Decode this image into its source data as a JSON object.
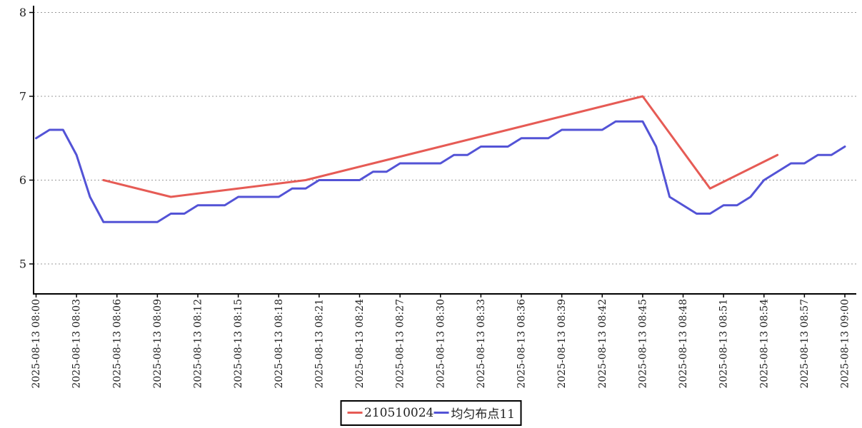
{
  "chart_data": {
    "type": "line",
    "title": "",
    "x_axis": {
      "tick_step_minutes": 3,
      "start_minute": 0,
      "end_minute": 60,
      "tick_labels": [
        "2025-08-13 08:00",
        "2025-08-13 08:03",
        "2025-08-13 08:06",
        "2025-08-13 08:09",
        "2025-08-13 08:12",
        "2025-08-13 08:15",
        "2025-08-13 08:18",
        "2025-08-13 08:21",
        "2025-08-13 08:24",
        "2025-08-13 08:27",
        "2025-08-13 08:30",
        "2025-08-13 08:33",
        "2025-08-13 08:36",
        "2025-08-13 08:39",
        "2025-08-13 08:42",
        "2025-08-13 08:45",
        "2025-08-13 08:48",
        "2025-08-13 08:51",
        "2025-08-13 08:54",
        "2025-08-13 08:57",
        "2025-08-13 09:00"
      ]
    },
    "y_axis": {
      "tick_labels": [
        "5",
        "6",
        "7",
        "8"
      ],
      "tick_values": [
        5,
        6,
        7,
        8
      ],
      "min": 4.65,
      "max": 8.08
    },
    "grid": {
      "horizontal_dashed": true
    },
    "legend": {
      "position": "bottom-center"
    },
    "series": [
      {
        "name": "210510024",
        "color": "#e65b55",
        "step_minutes": 5,
        "points": [
          [
            5,
            6.0
          ],
          [
            10,
            5.8
          ],
          [
            15,
            5.9
          ],
          [
            20,
            6.0
          ],
          [
            25,
            6.2
          ],
          [
            30,
            6.4
          ],
          [
            35,
            6.6
          ],
          [
            40,
            6.8
          ],
          [
            45,
            7.0
          ],
          [
            50,
            5.9
          ],
          [
            55,
            6.3
          ]
        ]
      },
      {
        "name": "均匀布点11",
        "color": "#5353d6",
        "start_minute": 0,
        "step_minutes": 1,
        "values": [
          6.5,
          6.6,
          6.6,
          6.3,
          5.8,
          5.5,
          5.5,
          5.5,
          5.5,
          5.5,
          5.6,
          5.6,
          5.7,
          5.7,
          5.7,
          5.8,
          5.8,
          5.8,
          5.8,
          5.9,
          5.9,
          6.0,
          6.0,
          6.0,
          6.0,
          6.1,
          6.1,
          6.2,
          6.2,
          6.2,
          6.2,
          6.3,
          6.3,
          6.4,
          6.4,
          6.4,
          6.5,
          6.5,
          6.5,
          6.6,
          6.6,
          6.6,
          6.6,
          6.7,
          6.7,
          6.7,
          6.4,
          5.8,
          5.7,
          5.6,
          5.6,
          5.7,
          5.7,
          5.8,
          6.0,
          6.1,
          6.2,
          6.2,
          6.3,
          6.3,
          6.4
        ]
      }
    ]
  },
  "colors": {
    "background": "#ffffff",
    "grid": "#999999",
    "axis": "#000000",
    "tick_text": "#222222"
  }
}
